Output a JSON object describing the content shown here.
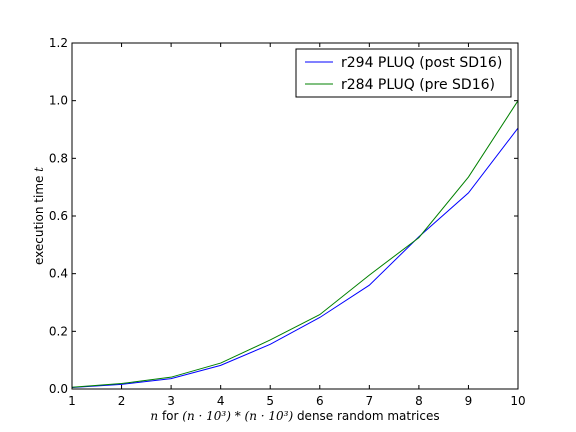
{
  "chart_data": {
    "type": "line",
    "x": [
      1,
      2,
      3,
      4,
      5,
      6,
      7,
      8,
      9,
      10
    ],
    "series": [
      {
        "name": "r294 PLUQ (post SD16)",
        "color": "#0000ff",
        "values": [
          0.005,
          0.016,
          0.036,
          0.082,
          0.155,
          0.248,
          0.36,
          0.528,
          0.68,
          0.905
        ]
      },
      {
        "name": "r284 PLUQ (pre SD16)",
        "color": "#008000",
        "values": [
          0.006,
          0.019,
          0.041,
          0.09,
          0.17,
          0.258,
          0.395,
          0.525,
          0.735,
          1.0
        ]
      }
    ],
    "xlim": [
      1,
      10
    ],
    "ylim": [
      0,
      1.2
    ],
    "xticks": [
      1,
      2,
      3,
      4,
      5,
      6,
      7,
      8,
      9,
      10
    ],
    "yticks": [
      0.0,
      0.2,
      0.4,
      0.6,
      0.8,
      1.0,
      1.2
    ],
    "xlabel": {
      "math_1": "n",
      "text_1": " for ",
      "math_2": "(n · 10³) * (n · 10³)",
      "text_2": " dense random matrices"
    },
    "ylabel": {
      "text": "execution time ",
      "math": "t"
    },
    "legend_position": "top-right",
    "grid": false
  }
}
